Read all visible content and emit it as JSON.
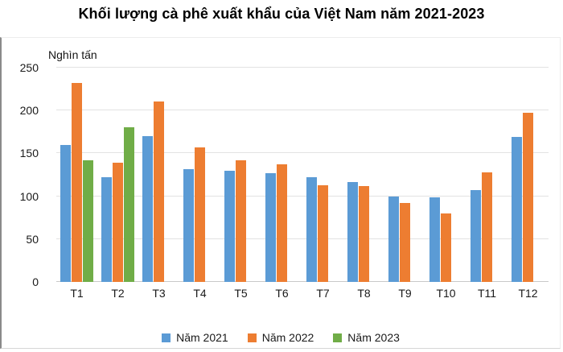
{
  "title": "Khối lượng cà phê xuất khẩu của Việt Nam năm 2021-2023",
  "unit_label": "Nghìn tấn",
  "colors": {
    "series_2021": "#5B9BD5",
    "series_2022": "#ED7D31",
    "series_2023": "#70AD47",
    "gridline": "#e2e2e2",
    "axis_line": "#c9c9c9",
    "text": "#1a1a1a"
  },
  "chart_data": {
    "type": "bar",
    "title": "Khối lượng cà phê xuất khẩu của Việt Nam năm 2021-2023",
    "ylabel": "Nghìn tấn",
    "xlabel": "",
    "categories": [
      "T1",
      "T2",
      "T3",
      "T4",
      "T5",
      "T6",
      "T7",
      "T8",
      "T9",
      "T10",
      "T11",
      "T12"
    ],
    "series": [
      {
        "name": "Năm 2021",
        "color": "#5B9BD5",
        "values": [
          160,
          122,
          170,
          132,
          130,
          127,
          122,
          117,
          100,
          99,
          107,
          169
        ]
      },
      {
        "name": "Năm 2022",
        "color": "#ED7D31",
        "values": [
          232,
          139,
          211,
          157,
          142,
          137,
          113,
          112,
          92,
          80,
          128,
          197
        ]
      },
      {
        "name": "Năm 2023",
        "color": "#70AD47",
        "values": [
          142,
          180,
          null,
          null,
          null,
          null,
          null,
          null,
          null,
          null,
          null,
          null
        ]
      }
    ],
    "ylim": [
      0,
      250
    ],
    "yticks": [
      0,
      50,
      100,
      150,
      200,
      250
    ],
    "grid": true,
    "legend_position": "bottom"
  }
}
